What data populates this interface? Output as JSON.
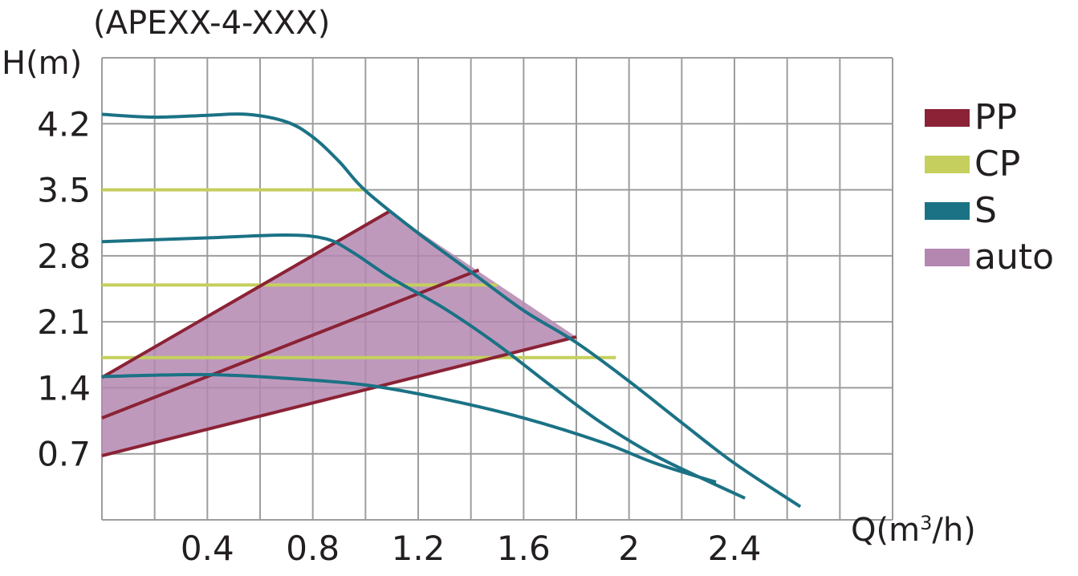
{
  "chart_data": {
    "type": "line",
    "title": "(APEXX-4-XXX)",
    "ylabel": "H(m)",
    "xlabel_main": "Q(m",
    "xlabel_sup": "3",
    "xlabel_tail": "/h)",
    "xlim": [
      0,
      3.0
    ],
    "ylim": [
      0,
      4.9
    ],
    "x_ticks": [
      0.4,
      0.8,
      1.2,
      1.6,
      2,
      2.4
    ],
    "x_tick_labels": [
      "0.4",
      "0.8",
      "1.2",
      "1.6",
      "2",
      "2.4"
    ],
    "y_ticks": [
      0.7,
      1.4,
      2.1,
      2.8,
      3.5,
      4.2
    ],
    "y_tick_labels": [
      "0.7",
      "1.4",
      "2.1",
      "2.8",
      "3.5",
      "4.2"
    ],
    "grid": true,
    "x_grid_step": 0.2,
    "y_grid_step": 0.7,
    "legend_position": "right",
    "legend": [
      {
        "key": "PP",
        "label": "PP",
        "color": "#8b2235"
      },
      {
        "key": "CP",
        "label": "CP",
        "color": "#c5cf5e"
      },
      {
        "key": "S",
        "label": "S",
        "color": "#1b7285"
      },
      {
        "key": "auto",
        "label": "auto",
        "color": "#b487b0"
      }
    ],
    "auto_region": [
      [
        0,
        1.51
      ],
      [
        1.09,
        3.27
      ],
      [
        1.8,
        1.94
      ],
      [
        0,
        0.68
      ]
    ],
    "series": [
      {
        "group": "PP",
        "points": [
          [
            0,
            1.51
          ],
          [
            1.09,
            3.27
          ]
        ]
      },
      {
        "group": "PP",
        "points": [
          [
            0,
            1.08
          ],
          [
            1.43,
            2.65
          ]
        ]
      },
      {
        "group": "PP",
        "points": [
          [
            0,
            0.68
          ],
          [
            1.8,
            1.94
          ]
        ]
      },
      {
        "group": "CP",
        "points": [
          [
            0,
            3.5
          ],
          [
            0.99,
            3.5
          ]
        ]
      },
      {
        "group": "CP",
        "points": [
          [
            0,
            2.49
          ],
          [
            1.5,
            2.49
          ]
        ]
      },
      {
        "group": "CP",
        "points": [
          [
            0,
            1.72
          ],
          [
            1.95,
            1.72
          ]
        ]
      },
      {
        "group": "S",
        "points": [
          [
            0,
            4.3
          ],
          [
            0.2,
            4.27
          ],
          [
            0.4,
            4.29
          ],
          [
            0.55,
            4.3
          ],
          [
            0.7,
            4.22
          ],
          [
            0.8,
            4.06
          ],
          [
            0.9,
            3.8
          ],
          [
            1.0,
            3.49
          ],
          [
            1.2,
            3.04
          ],
          [
            1.4,
            2.63
          ],
          [
            1.6,
            2.22
          ],
          [
            1.8,
            1.88
          ],
          [
            2.0,
            1.47
          ],
          [
            2.2,
            1.03
          ],
          [
            2.4,
            0.6
          ],
          [
            2.65,
            0.14
          ]
        ]
      },
      {
        "group": "S",
        "points": [
          [
            0,
            2.95
          ],
          [
            0.4,
            2.99
          ],
          [
            0.7,
            3.02
          ],
          [
            0.85,
            2.98
          ],
          [
            0.95,
            2.84
          ],
          [
            1.1,
            2.56
          ],
          [
            1.3,
            2.24
          ],
          [
            1.5,
            1.86
          ],
          [
            1.7,
            1.43
          ],
          [
            1.9,
            1.02
          ],
          [
            2.1,
            0.68
          ],
          [
            2.3,
            0.41
          ],
          [
            2.44,
            0.23
          ]
        ]
      },
      {
        "group": "S",
        "points": [
          [
            0,
            1.52
          ],
          [
            0.4,
            1.54
          ],
          [
            0.7,
            1.5
          ],
          [
            1.0,
            1.43
          ],
          [
            1.3,
            1.28
          ],
          [
            1.6,
            1.08
          ],
          [
            1.9,
            0.82
          ],
          [
            2.1,
            0.6
          ],
          [
            2.33,
            0.4
          ]
        ]
      }
    ]
  }
}
